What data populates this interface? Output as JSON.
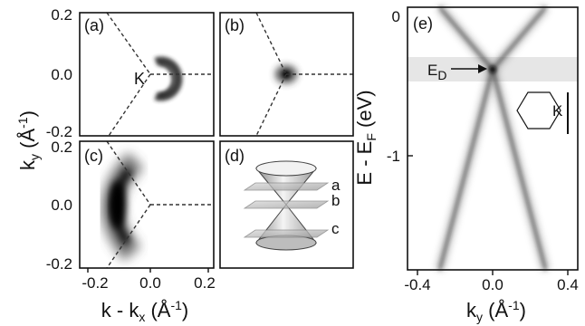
{
  "figure": {
    "panels": [
      {
        "id": "a",
        "label": "(a)",
        "marker": "K"
      },
      {
        "id": "b",
        "label": "(b)"
      },
      {
        "id": "c",
        "label": "(c)"
      },
      {
        "id": "d",
        "label": "(d)",
        "cut_labels": [
          "a",
          "b",
          "c"
        ]
      },
      {
        "id": "e",
        "label": "(e)",
        "dirac_label": "E",
        "dirac_sub": "D",
        "inset_marker": "K"
      }
    ],
    "map_axes": {
      "x_ticks": [
        "-0.2",
        "0.0",
        "0.2"
      ],
      "y_ticks": [
        "0.2",
        "0.0",
        "-0.2"
      ],
      "x_label": {
        "main": "k - k",
        "sub": "x",
        "unit": " (Å",
        "sup": "-1",
        "close": ")"
      },
      "y_label": {
        "main": "k",
        "sub": "y",
        "unit": " (Å",
        "sup": "-1",
        "close": ")"
      }
    },
    "dispersion_axes": {
      "x_ticks": [
        "-0.4",
        "0.0",
        "0.4"
      ],
      "y_ticks": [
        "0",
        "-1"
      ],
      "x_label": {
        "main": "k",
        "sub": "y",
        "unit": " (Å",
        "sup": "-1",
        "close": ")"
      },
      "y_label": {
        "main": "E - E",
        "sub": "F",
        "unit": " (eV)"
      }
    }
  },
  "chart_data": [
    {
      "type": "heatmap",
      "panel": "a",
      "description_values": {
        "xlim": [
          -0.2,
          0.2
        ],
        "ylim": [
          -0.22,
          0.22
        ]
      },
      "features": [
        {
          "shape": "arc",
          "center_kx": 0.03,
          "center_ky": 0.0,
          "radius": 0.03
        }
      ]
    },
    {
      "type": "heatmap",
      "panel": "b",
      "xlim": [
        -0.2,
        0.2
      ],
      "ylim": [
        -0.22,
        0.22
      ],
      "features": [
        {
          "shape": "spot",
          "center_kx": 0.0,
          "center_ky": 0.0,
          "radius": 0.012
        }
      ]
    },
    {
      "type": "heatmap",
      "panel": "c",
      "xlim": [
        -0.2,
        0.2
      ],
      "ylim": [
        -0.22,
        0.22
      ],
      "features": [
        {
          "shape": "arc",
          "center_kx": -0.05,
          "center_ky": 0.0,
          "radius": 0.12
        }
      ]
    },
    {
      "type": "line",
      "panel": "e",
      "xlim": [
        -0.45,
        0.45
      ],
      "ylim": [
        -1.85,
        0.05
      ],
      "dirac_energy": -0.4,
      "series": [
        {
          "x": [
            -0.28,
            0.0,
            0.28
          ],
          "y": [
            -1.85,
            -0.4,
            0.05
          ]
        },
        {
          "x": [
            0.28,
            0.0,
            -0.28
          ],
          "y": [
            -1.85,
            -0.4,
            0.05
          ]
        }
      ]
    }
  ]
}
